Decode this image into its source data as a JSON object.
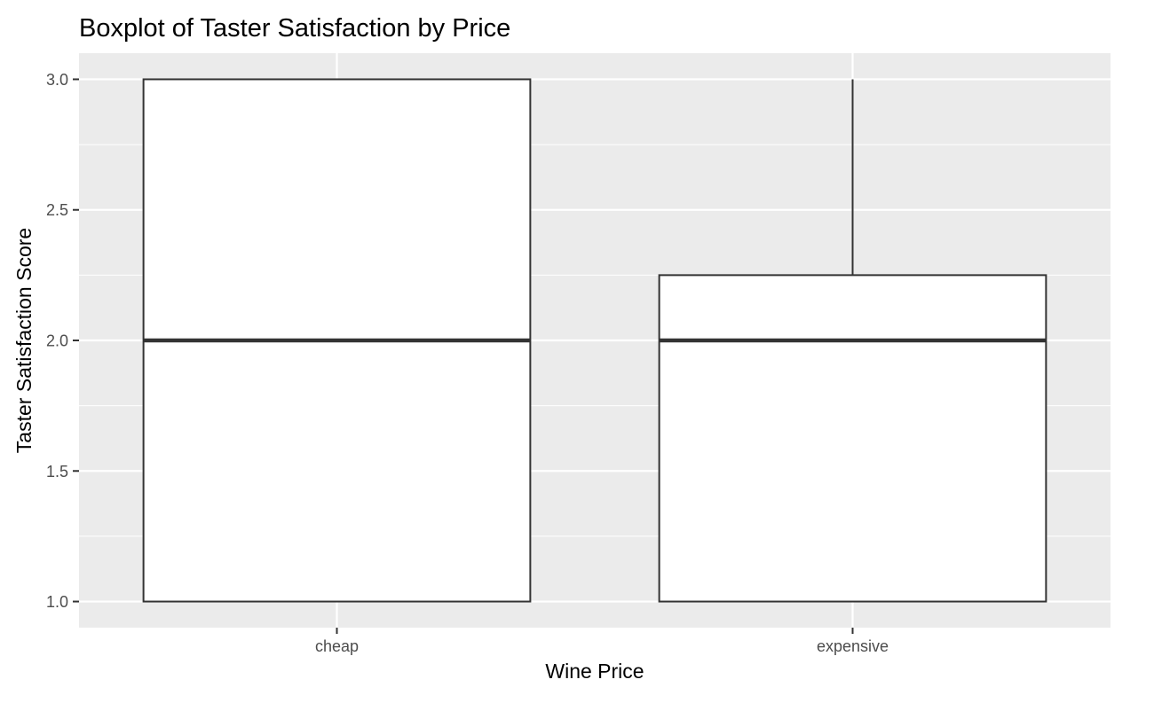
{
  "chart_data": {
    "type": "boxplot",
    "title": "Boxplot of Taster Satisfaction by Price",
    "xlabel": "Wine Price",
    "ylabel": "Taster Satisfaction Score",
    "categories": [
      "cheap",
      "expensive"
    ],
    "boxes": [
      {
        "category": "cheap",
        "min": 1.0,
        "q1": 1.0,
        "median": 2.0,
        "q3": 3.0,
        "max": 3.0
      },
      {
        "category": "expensive",
        "min": 1.0,
        "q1": 1.0,
        "median": 2.0,
        "q3": 2.25,
        "max": 3.0
      }
    ],
    "ylim": [
      0.9,
      3.1
    ],
    "yticks": [
      1.0,
      1.5,
      2.0,
      2.5,
      3.0
    ],
    "ytick_labels": [
      "1.0",
      "1.5",
      "2.0",
      "2.5",
      "3.0"
    ],
    "grid": true,
    "colors": {
      "panel_background": "#EBEBEB",
      "grid": "#FFFFFF",
      "box_fill": "#FFFFFF",
      "box_stroke": "#333333",
      "tick_text": "#4D4D4D",
      "title_text": "#000000"
    }
  }
}
